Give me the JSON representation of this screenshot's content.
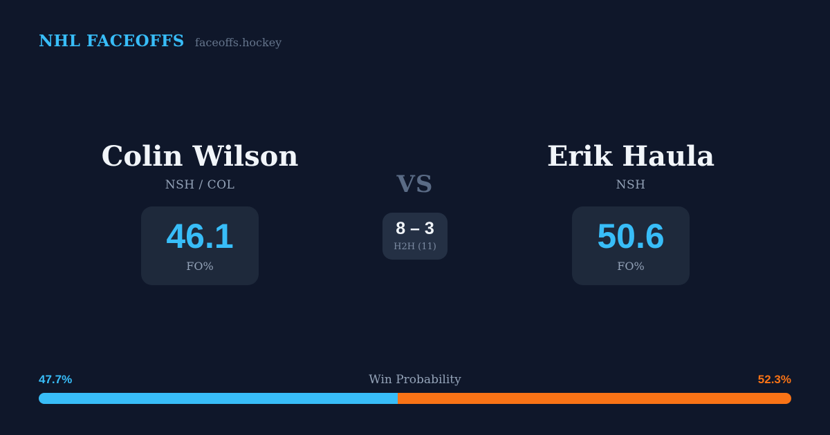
{
  "header": {
    "brand": "NHL FACEOFFS",
    "site": "faceoffs.hockey"
  },
  "matchup": {
    "left": {
      "name": "Colin Wilson",
      "teams": "NSH / COL",
      "stat_value": "46.1",
      "stat_label": "FO%"
    },
    "vs_label": "VS",
    "h2h": {
      "score": "8 – 3",
      "label": "H2H (11)"
    },
    "right": {
      "name": "Erik Haula",
      "teams": "NSH",
      "stat_value": "50.6",
      "stat_label": "FO%"
    }
  },
  "win_probability": {
    "title": "Win Probability",
    "left": {
      "pct_label": "47.7%",
      "value": 47.7,
      "color": "#38bdf8"
    },
    "right": {
      "pct_label": "52.3%",
      "value": 52.3,
      "color": "#f97316"
    }
  },
  "colors": {
    "background": "#0f172a",
    "card": "#1e293b",
    "h2h_card": "#243044",
    "accent_blue": "#38bdf8",
    "accent_orange": "#f97316",
    "text_primary": "#f1f5f9",
    "text_muted": "#94a3b8"
  }
}
